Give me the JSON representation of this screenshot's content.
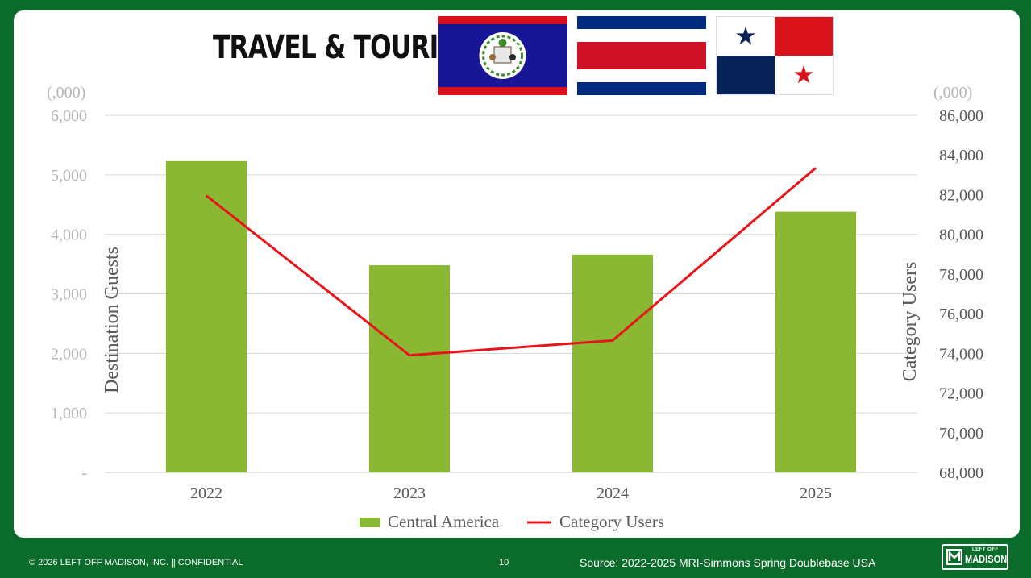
{
  "header": {
    "title": "TRAVEL & TOURISM:"
  },
  "flags": [
    {
      "name": "belize",
      "colors": {
        "blue": "#171696",
        "red": "#d90f19"
      }
    },
    {
      "name": "costa-rica",
      "colors": {
        "blue": "#002b7f",
        "white": "#ffffff",
        "red": "#ce1126"
      }
    },
    {
      "name": "panama",
      "colors": {
        "blue": "#072357",
        "red": "#da121a",
        "white": "#ffffff"
      }
    }
  ],
  "chart_data": {
    "type": "bar",
    "categories": [
      "2022",
      "2023",
      "2024",
      "2025"
    ],
    "series": [
      {
        "name": "Central America",
        "kind": "bar",
        "axis": "left",
        "color": "#8ab833",
        "values": [
          5230,
          3480,
          3660,
          4380
        ]
      },
      {
        "name": "Category Users",
        "kind": "line",
        "axis": "right",
        "color": "#e8141a",
        "values": [
          81950,
          73900,
          74650,
          83350
        ]
      }
    ],
    "y_left": {
      "label": "Destination Guests",
      "unit": "(,000)",
      "range": [
        0,
        6000
      ],
      "ticks": [
        0,
        1000,
        2000,
        3000,
        4000,
        5000,
        6000
      ],
      "tick_labels": [
        "-",
        "1,000",
        "2,000",
        "3,000",
        "4,000",
        "5,000",
        "6,000"
      ]
    },
    "y_right": {
      "label": "Category Users",
      "unit": "(,000)",
      "range": [
        68000,
        86000
      ],
      "ticks": [
        68000,
        70000,
        72000,
        74000,
        76000,
        78000,
        80000,
        82000,
        84000,
        86000
      ],
      "tick_labels": [
        "68,000",
        "70,000",
        "72,000",
        "74,000",
        "76,000",
        "78,000",
        "80,000",
        "82,000",
        "84,000",
        "86,000"
      ]
    },
    "grid": true,
    "legend": "bottom"
  },
  "footer": {
    "copyright": "© 2026 LEFT OFF MADISON, INC.  ||  CONFIDENTIAL",
    "page_number": "10",
    "source": "Source: 2022-2025 MRI-Simmons Spring Doublebase USA"
  },
  "logo": {
    "small": "LEFT OFF",
    "big": "MADISON"
  }
}
